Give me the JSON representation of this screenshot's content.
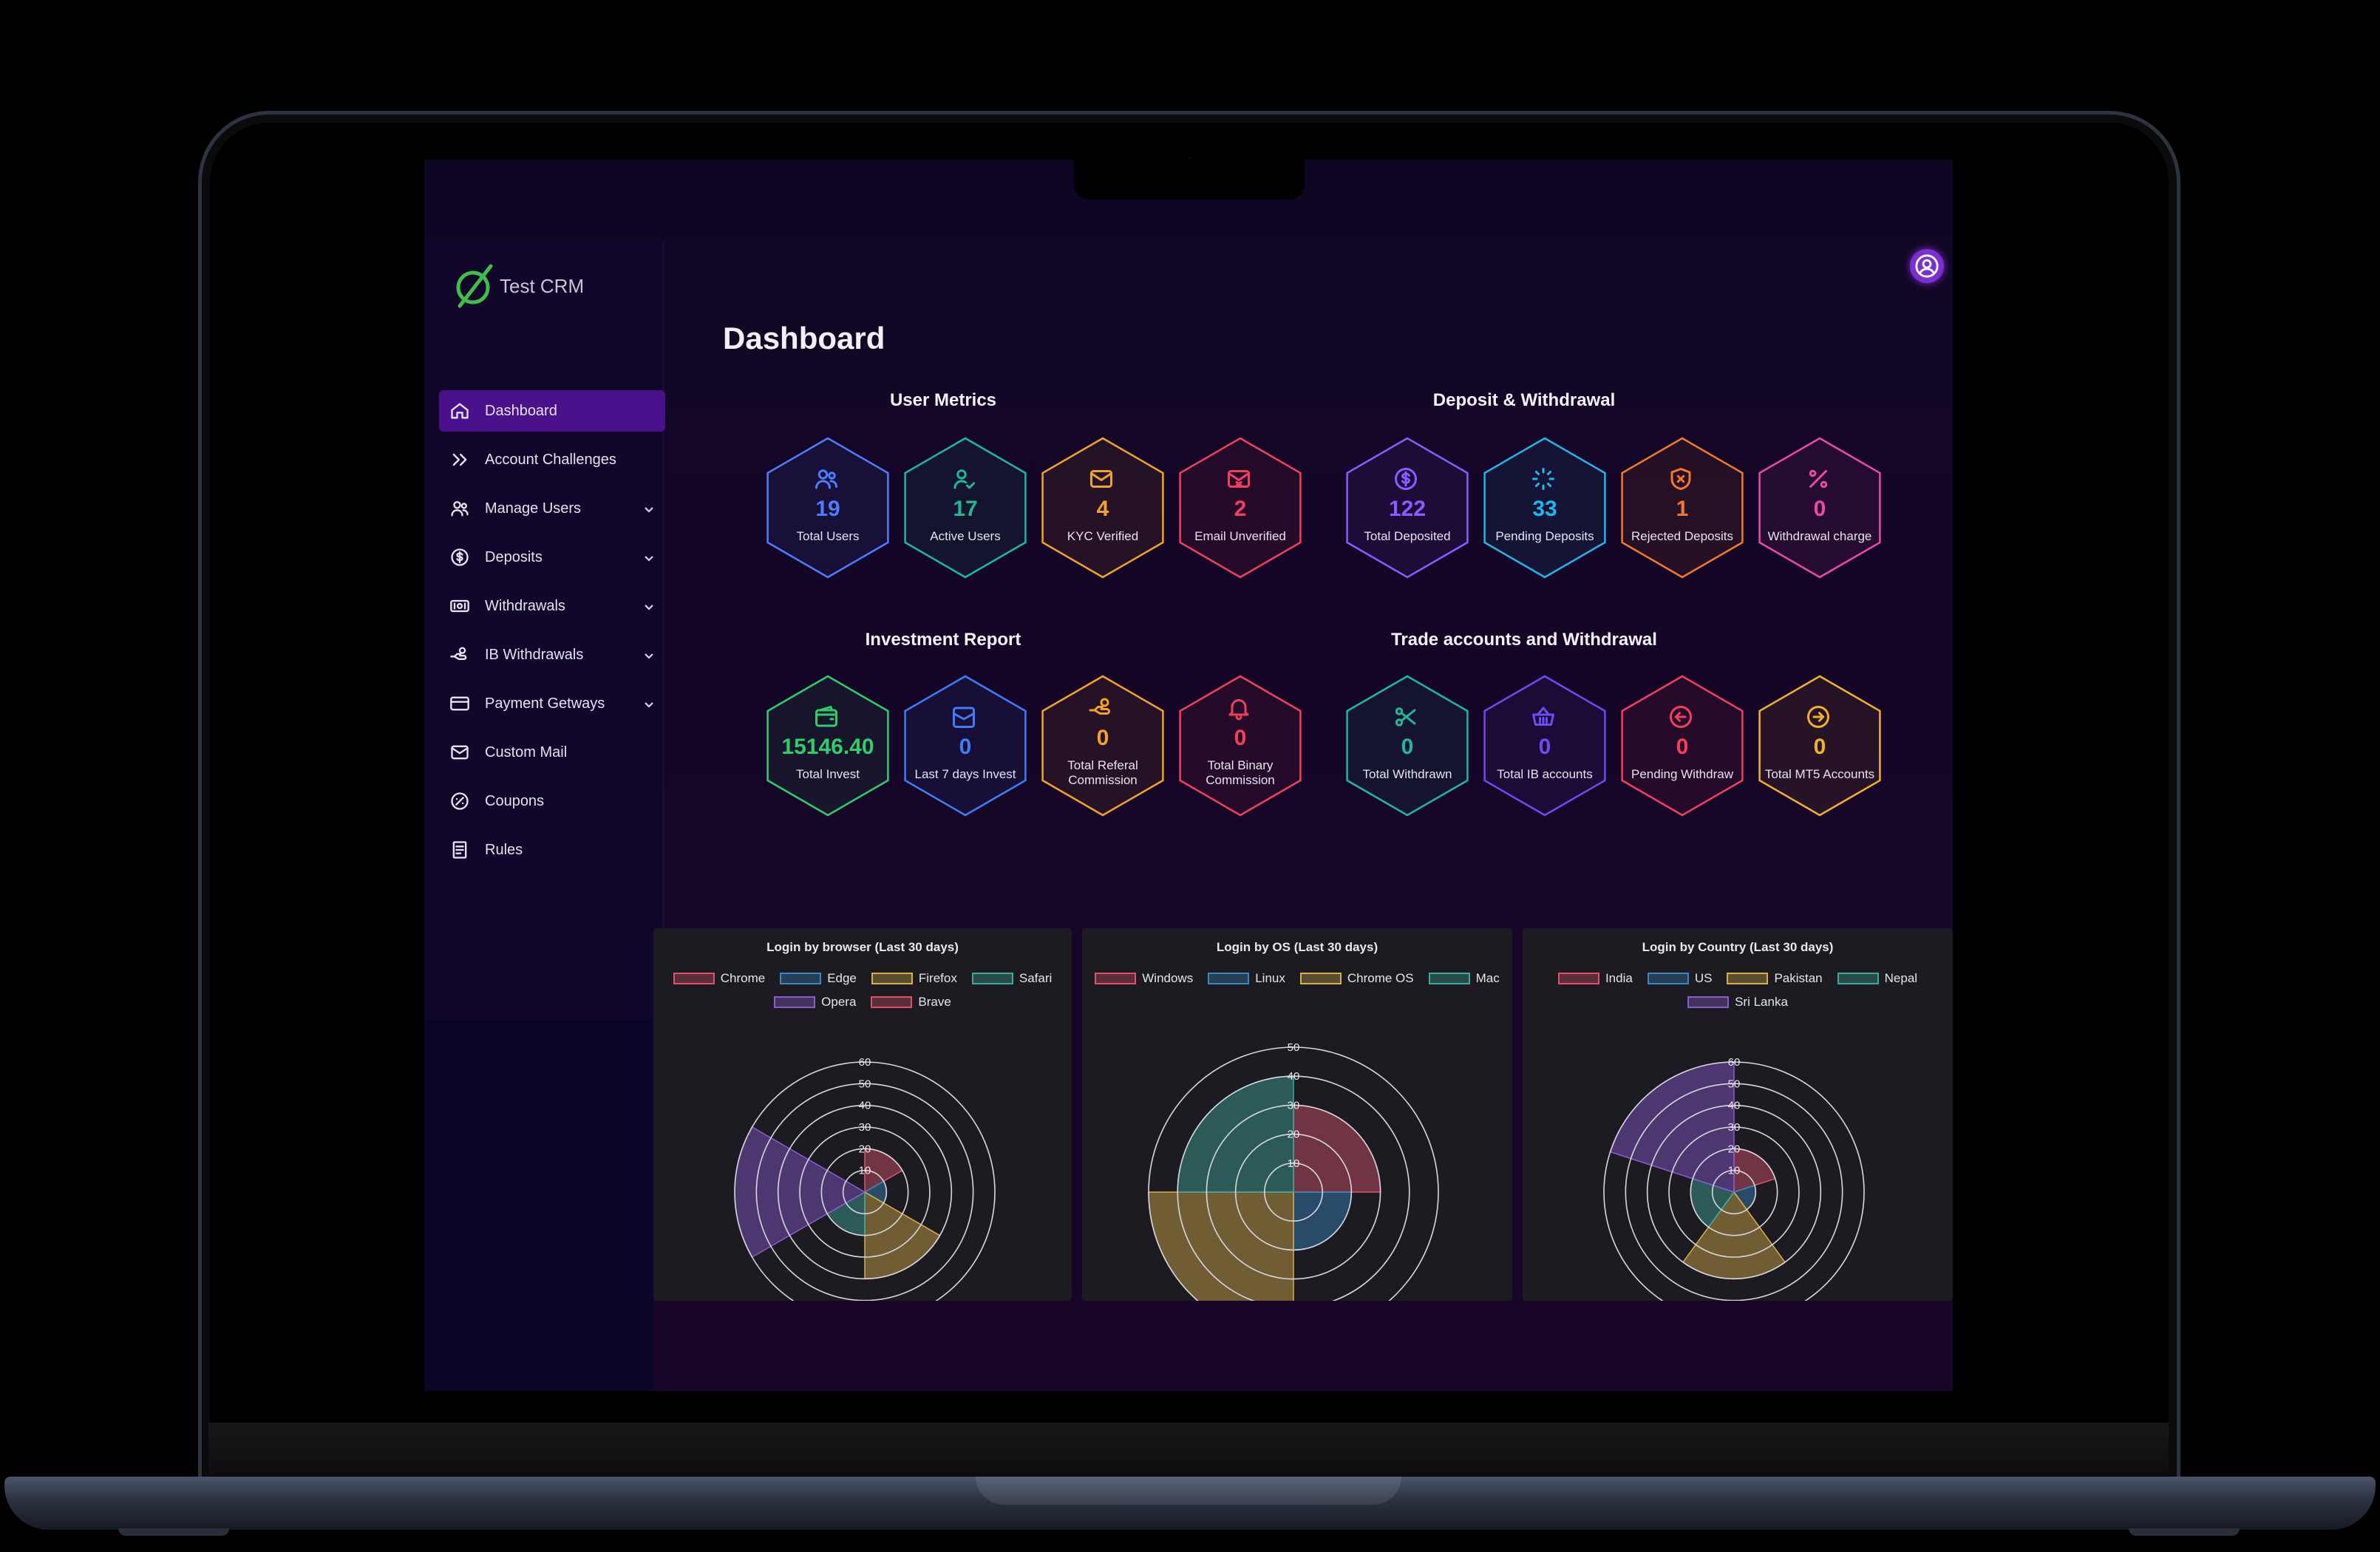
{
  "app": {
    "name": "Test CRM"
  },
  "sidebar": {
    "items": [
      {
        "label": "Dashboard",
        "icon": "home-icon",
        "active": true,
        "expandable": false
      },
      {
        "label": "Account Challenges",
        "icon": "double-chevron-icon",
        "active": false,
        "expandable": false
      },
      {
        "label": "Manage Users",
        "icon": "users-icon",
        "active": false,
        "expandable": true
      },
      {
        "label": "Deposits",
        "icon": "dollar-circle-icon",
        "active": false,
        "expandable": true
      },
      {
        "label": "Withdrawals",
        "icon": "cash-icon",
        "active": false,
        "expandable": true
      },
      {
        "label": "IB Withdrawals",
        "icon": "hand-coin-icon",
        "active": false,
        "expandable": true
      },
      {
        "label": "Payment Getways",
        "icon": "credit-card-icon",
        "active": false,
        "expandable": true
      },
      {
        "label": "Custom Mail",
        "icon": "mail-icon",
        "active": false,
        "expandable": false
      },
      {
        "label": "Coupons",
        "icon": "coupon-icon",
        "active": false,
        "expandable": false
      },
      {
        "label": "Rules",
        "icon": "document-icon",
        "active": false,
        "expandable": false
      }
    ]
  },
  "header": {
    "title": "Dashboard",
    "avatar_icon": "user-circle-icon"
  },
  "sections": [
    {
      "title": "User Metrics",
      "cards": [
        {
          "value": "19",
          "label": "Total Users",
          "icon": "users-icon",
          "color": "#4f7cff"
        },
        {
          "value": "17",
          "label": "Active Users",
          "icon": "user-check-icon",
          "color": "#1fb99a"
        },
        {
          "value": "4",
          "label": "KYC Verified",
          "icon": "mail-icon",
          "color": "#f0a22a"
        },
        {
          "value": "2",
          "label": "Email Unverified",
          "icon": "mail-x-icon",
          "color": "#f0405c"
        }
      ]
    },
    {
      "title": "Deposit & Withdrawal",
      "cards": [
        {
          "value": "122",
          "label": "Total Deposited",
          "icon": "dollar-circle-icon",
          "color": "#8a5cff"
        },
        {
          "value": "33",
          "label": "Pending Deposits",
          "icon": "loader-icon",
          "color": "#22b6e8"
        },
        {
          "value": "1",
          "label": "Rejected Deposits",
          "icon": "shield-x-icon",
          "color": "#f27a2a"
        },
        {
          "value": "0",
          "label": "Withdrawal charge",
          "icon": "percent-icon",
          "color": "#ec4aa8"
        }
      ]
    },
    {
      "title": "Investment Report",
      "cards": [
        {
          "value": "15146.40",
          "label": "Total Invest",
          "icon": "wallet-icon",
          "color": "#2ecf6a"
        },
        {
          "value": "0",
          "label": "Last 7 days Invest",
          "icon": "calendar-icon",
          "color": "#3f7cf7"
        },
        {
          "value": "0",
          "label": "Total Referal Commission",
          "icon": "hand-coin-icon",
          "color": "#f0a22a"
        },
        {
          "value": "0",
          "label": "Total Binary Commission",
          "icon": "bell-icon",
          "color": "#f0405c"
        }
      ]
    },
    {
      "title": "Trade accounts and Withdrawal",
      "cards": [
        {
          "value": "0",
          "label": "Total Withdrawn",
          "icon": "scissors-icon",
          "color": "#1fb99a"
        },
        {
          "value": "0",
          "label": "Total IB accounts",
          "icon": "basket-icon",
          "color": "#6a4cf0"
        },
        {
          "value": "0",
          "label": "Pending Withdraw",
          "icon": "arrow-left-circle-icon",
          "color": "#f0405c"
        },
        {
          "value": "0",
          "label": "Total MT5 Accounts",
          "icon": "arrow-right-circle-icon",
          "color": "#f0b22a"
        }
      ]
    }
  ],
  "chart_data": [
    {
      "type": "polarArea",
      "title": "Login by browser (Last 30 days)",
      "categories": [
        "Chrome",
        "Edge",
        "Firefox",
        "Safari",
        "Opera",
        "Brave"
      ],
      "values": [
        20,
        10,
        40,
        20,
        60,
        0
      ],
      "colors": [
        "#d9546a",
        "#3a87c4",
        "#d8b04a",
        "#3fa89a",
        "#8a5cd0",
        "#d9546a"
      ],
      "r_ticks": [
        10,
        20,
        30,
        40,
        50,
        60
      ],
      "r_max": 60
    },
    {
      "type": "polarArea",
      "title": "Login by OS (Last 30 days)",
      "categories": [
        "Windows",
        "Linux",
        "Chrome OS",
        "Mac"
      ],
      "values": [
        30,
        20,
        50,
        40
      ],
      "colors": [
        "#d9546a",
        "#3a87c4",
        "#d8b04a",
        "#3fa89a"
      ],
      "r_ticks": [
        10,
        20,
        30,
        40,
        50
      ],
      "r_max": 50
    },
    {
      "type": "polarArea",
      "title": "Login by Country (Last 30 days)",
      "categories": [
        "India",
        "US",
        "Pakistan",
        "Nepal",
        "Sri Lanka"
      ],
      "values": [
        20,
        10,
        40,
        20,
        60
      ],
      "colors": [
        "#d9546a",
        "#3a87c4",
        "#d8b04a",
        "#3fa89a",
        "#8a5cd0"
      ],
      "r_ticks": [
        10,
        20,
        30,
        40,
        50,
        60
      ],
      "r_max": 60
    }
  ]
}
